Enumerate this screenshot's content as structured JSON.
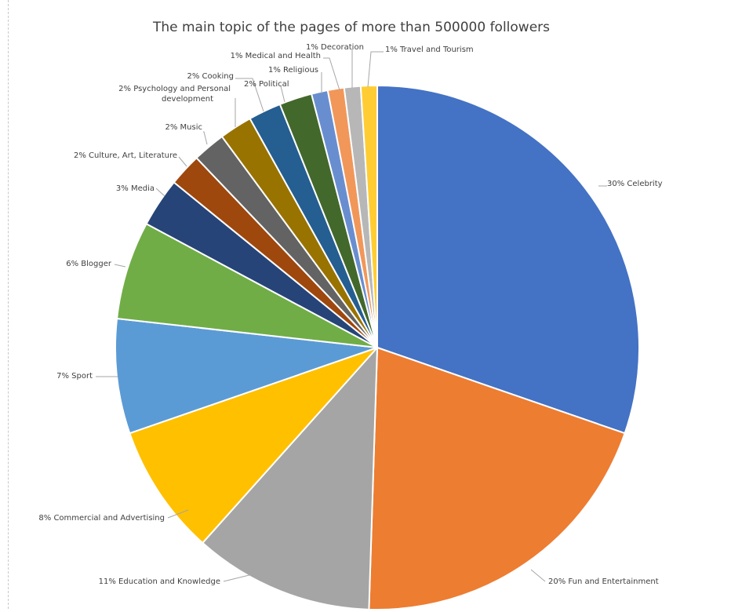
{
  "chart_data": {
    "type": "pie",
    "title": "The main topic of the pages of more than 500000 followers",
    "slices": [
      {
        "label": "Celebrity",
        "value": 30,
        "pct_label": "30%",
        "color": "#4472C4"
      },
      {
        "label": "Fun and Entertainment",
        "value": 20,
        "pct_label": "20%",
        "color": "#ED7D31"
      },
      {
        "label": "Education and Knowledge",
        "value": 11,
        "pct_label": "11%",
        "color": "#A5A5A5"
      },
      {
        "label": "Commercial and Advertising",
        "value": 8,
        "pct_label": "8%",
        "color": "#FFC000"
      },
      {
        "label": "Sport",
        "value": 7,
        "pct_label": "7%",
        "color": "#5B9BD5"
      },
      {
        "label": "Blogger",
        "value": 6,
        "pct_label": "6%",
        "color": "#70AD47"
      },
      {
        "label": "Media",
        "value": 3,
        "pct_label": "3%",
        "color": "#264478"
      },
      {
        "label": "Culture, Art, Literature",
        "value": 2,
        "pct_label": "2%",
        "color": "#9E480E"
      },
      {
        "label": "Music",
        "value": 2,
        "pct_label": "2%",
        "color": "#636363"
      },
      {
        "label": "Psychology and Personal development",
        "value": 2,
        "pct_label": "2%",
        "color": "#997300"
      },
      {
        "label": "Cooking",
        "value": 2,
        "pct_label": "2%",
        "color": "#255E91"
      },
      {
        "label": "Political",
        "value": 2,
        "pct_label": "2%",
        "color": "#43682B"
      },
      {
        "label": "Religious",
        "value": 1,
        "pct_label": "1%",
        "color": "#698ED0"
      },
      {
        "label": "Medical and Health",
        "value": 1,
        "pct_label": "1%",
        "color": "#F1975A"
      },
      {
        "label": "Decoration",
        "value": 1,
        "pct_label": "1%",
        "color": "#B7B7B7"
      },
      {
        "label": "Travel and Tourism",
        "value": 1,
        "pct_label": "1%",
        "color": "#FFCD33"
      }
    ],
    "legend": "none",
    "data_labels": "outside with leader lines"
  }
}
